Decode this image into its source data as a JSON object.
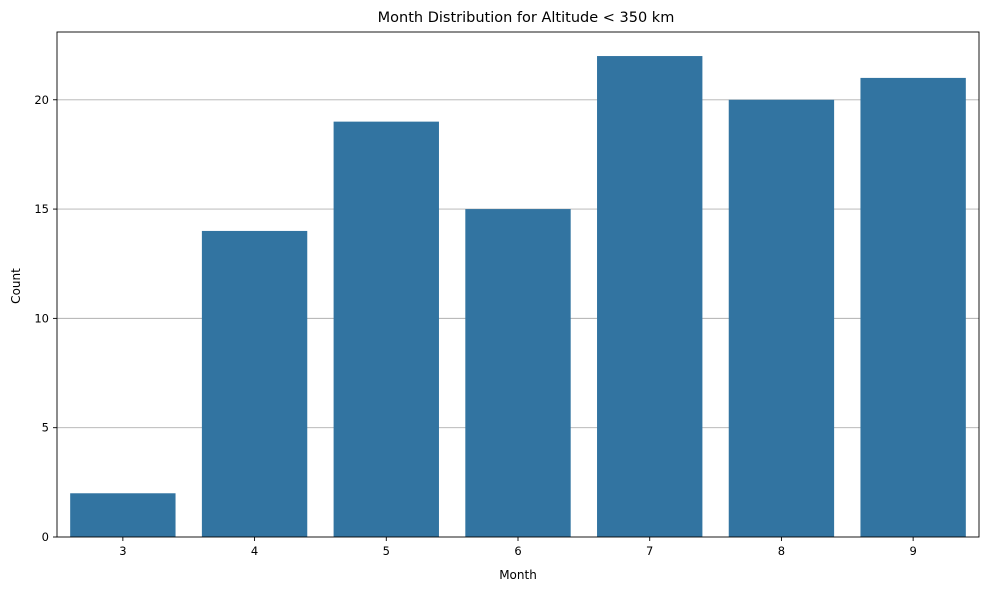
{
  "chart_data": {
    "type": "bar",
    "title": "Month Distribution for Altitude < 350 km",
    "xlabel": "Month",
    "ylabel": "Count",
    "categories": [
      "3",
      "4",
      "5",
      "6",
      "7",
      "8",
      "9"
    ],
    "values": [
      2,
      14,
      19,
      15,
      22,
      20,
      21
    ],
    "ylim": [
      0,
      23.1
    ],
    "yticks": [
      0,
      5,
      10,
      15,
      20
    ],
    "ytick_labels": [
      "0",
      "5",
      "10",
      "15",
      "20"
    ],
    "grid": {
      "y": true,
      "x": false
    },
    "bar_color": "#3274a1",
    "legend": "none"
  }
}
